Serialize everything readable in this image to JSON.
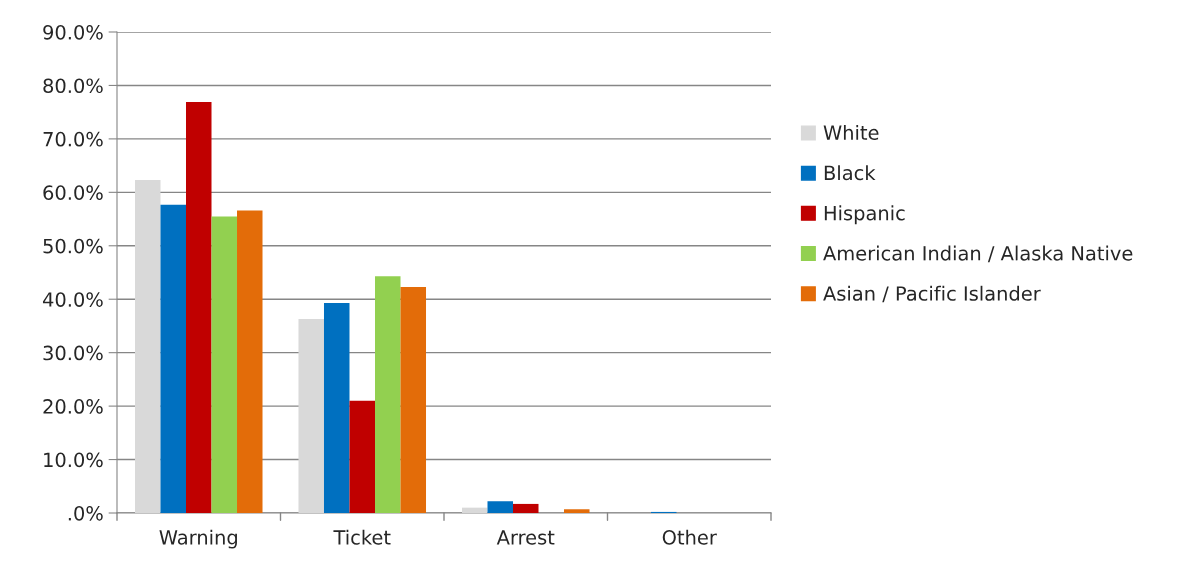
{
  "chart_data": {
    "type": "bar",
    "categories": [
      "Warning",
      "Ticket",
      "Arrest",
      "Other"
    ],
    "series": [
      {
        "name": "White",
        "color": "#d9d9d9",
        "values": [
          62.3,
          36.3,
          1.0,
          null
        ]
      },
      {
        "name": "Black",
        "color": "#0070c0",
        "values": [
          57.7,
          39.3,
          2.2,
          0.2
        ]
      },
      {
        "name": "Hispanic",
        "color": "#c00000",
        "values": [
          76.9,
          21.0,
          1.7,
          null
        ]
      },
      {
        "name": "American Indian / Alaska Native",
        "color": "#92d050",
        "values": [
          55.5,
          44.3,
          null,
          null
        ]
      },
      {
        "name": "Asian / Pacific Islander",
        "color": "#e36c09",
        "values": [
          56.6,
          42.3,
          0.7,
          null
        ]
      }
    ],
    "ylim": [
      0,
      90
    ],
    "yticks": [
      {
        "value": 0,
        "label": ".0%"
      },
      {
        "value": 10,
        "label": "10.0%"
      },
      {
        "value": 20,
        "label": "20.0%"
      },
      {
        "value": 30,
        "label": "30.0%"
      },
      {
        "value": 40,
        "label": "40.0%"
      },
      {
        "value": 50,
        "label": "50.0%"
      },
      {
        "value": 60,
        "label": "60.0%"
      },
      {
        "value": 70,
        "label": "70.0%"
      },
      {
        "value": 80,
        "label": "80.0%"
      },
      {
        "value": 90,
        "label": "90.0%"
      }
    ],
    "grid": "y",
    "legend": "right"
  }
}
